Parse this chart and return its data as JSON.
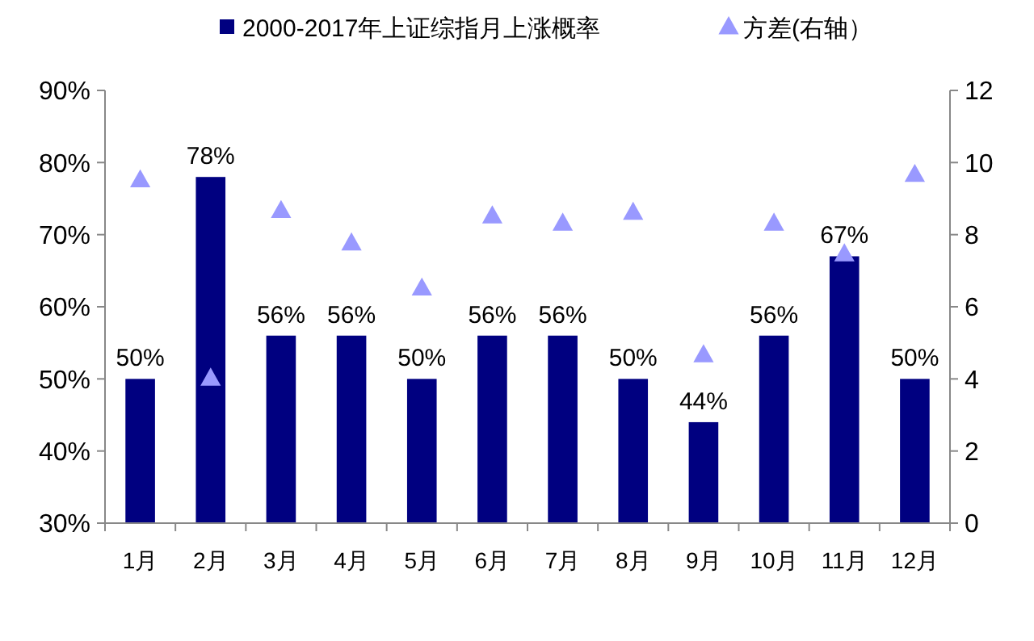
{
  "chart_data": {
    "type": "bar",
    "categories": [
      "1月",
      "2月",
      "3月",
      "4月",
      "5月",
      "6月",
      "7月",
      "8月",
      "9月",
      "10月",
      "11月",
      "12月"
    ],
    "series": [
      {
        "name": "2000-2017年上证综指月上涨概率",
        "color": "#000080",
        "values": [
          50,
          78,
          56,
          56,
          50,
          56,
          56,
          50,
          44,
          56,
          67,
          50
        ],
        "value_labels": [
          "50%",
          "78%",
          "56%",
          "56%",
          "50%",
          "56%",
          "56%",
          "50%",
          "44%",
          "56%",
          "67%",
          "50%"
        ]
      },
      {
        "name": "方差(右轴）",
        "type": "scatter",
        "axis": "y2",
        "marker": "triangle",
        "color": "#9999ff",
        "values": [
          9.5,
          4.0,
          8.65,
          7.75,
          6.5,
          8.5,
          8.3,
          8.6,
          4.65,
          8.3,
          7.45,
          9.65
        ]
      }
    ],
    "ylim": [
      30,
      90
    ],
    "yticks": [
      {
        "value": 30,
        "label": "30%"
      },
      {
        "value": 40,
        "label": "40%"
      },
      {
        "value": 50,
        "label": "50%"
      },
      {
        "value": 60,
        "label": "60%"
      },
      {
        "value": 70,
        "label": "70%"
      },
      {
        "value": 80,
        "label": "80%"
      },
      {
        "value": 90,
        "label": "90%"
      }
    ],
    "y2lim": [
      0,
      12
    ],
    "y2ticks": [
      0,
      2,
      4,
      6,
      8,
      10,
      12
    ],
    "legend": "top",
    "grid": false
  }
}
